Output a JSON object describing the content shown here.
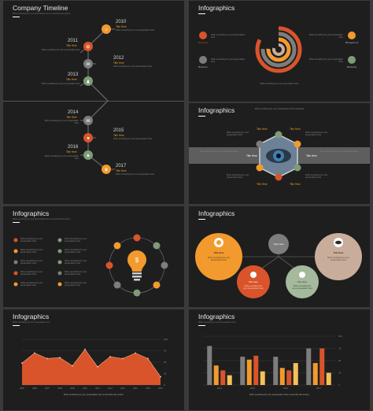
{
  "colors": {
    "orange": "#f29a2e",
    "red": "#d9542b",
    "green": "#7e9c76",
    "gray": "#7d7d7d",
    "tan": "#c9ad9b",
    "bg": "#1e1e1e"
  },
  "placeholder": "Write something for your presentation here",
  "slide1": {
    "title": "Company Timeline",
    "subtitle": "Write something for your presentation here to describe this section",
    "entries": [
      {
        "year": "2010",
        "title": "Title Here",
        "icon": "search-icon"
      },
      {
        "year": "2011",
        "title": "Title Here",
        "icon": "gear-icon"
      },
      {
        "year": "2012",
        "title": "Title Here",
        "icon": "chat-icon"
      },
      {
        "year": "2013",
        "title": "Title Here",
        "icon": "person-icon"
      },
      {
        "year": "2014",
        "title": "Title Here",
        "icon": "mail-icon"
      },
      {
        "year": "2015",
        "title": "Title Here",
        "icon": "heart-icon"
      },
      {
        "year": "2016",
        "title": "Title Here",
        "icon": "star-icon"
      },
      {
        "year": "2017",
        "title": "Title Here",
        "icon": "trophy-icon"
      }
    ]
  },
  "slide2": {
    "title": "Infographics",
    "labels": [
      "Economy",
      "Management",
      "Business",
      "Marketing"
    ],
    "footer": "Write something for your presentation here"
  },
  "slide3": {
    "title": "Infographics",
    "subtitle": "Write something for your presentation here to describe",
    "nodes": [
      "Title Here",
      "Title Here",
      "Title Here",
      "Title Here",
      "Title Here",
      "Title Here"
    ]
  },
  "slide4": {
    "title": "Infographics",
    "subtitle": "Write something for your presentation here to describe this section"
  },
  "slide5": {
    "title": "Infographics",
    "center_label": "Topic Here",
    "circles": [
      "Title Here",
      "Title Here",
      "Title Here",
      "Title Here"
    ]
  },
  "slide6": {
    "title": "Infographics",
    "subtitle": "Write something for your presentation here",
    "caption": "Write something for your presentation here to describe this section",
    "chart_data": {
      "type": "area",
      "x": [
        "2005",
        "2006",
        "2007",
        "2008",
        "2009",
        "2010",
        "2011",
        "2012",
        "2013",
        "2014",
        "2015",
        "2016"
      ],
      "values": [
        48,
        70,
        58,
        60,
        42,
        78,
        40,
        62,
        58,
        70,
        58,
        18
      ],
      "ylim": [
        0,
        100
      ]
    }
  },
  "slide7": {
    "title": "Infographics",
    "subtitle": "Write something for your presentation here",
    "caption": "Write something for your presentation here to describe this section",
    "chart_data": {
      "type": "bar",
      "categories": [
        "2014",
        "2015",
        "2016",
        "2017"
      ],
      "series": [
        {
          "color": "#7d7d7d",
          "values": [
            80,
            58,
            58,
            75
          ]
        },
        {
          "color": "#f29a2e",
          "values": [
            40,
            52,
            35,
            45
          ]
        },
        {
          "color": "#d9542b",
          "values": [
            30,
            60,
            30,
            75
          ]
        },
        {
          "color": "#f4c15a",
          "values": [
            20,
            28,
            45,
            25
          ]
        }
      ],
      "ylim": [
        0,
        100
      ]
    }
  }
}
